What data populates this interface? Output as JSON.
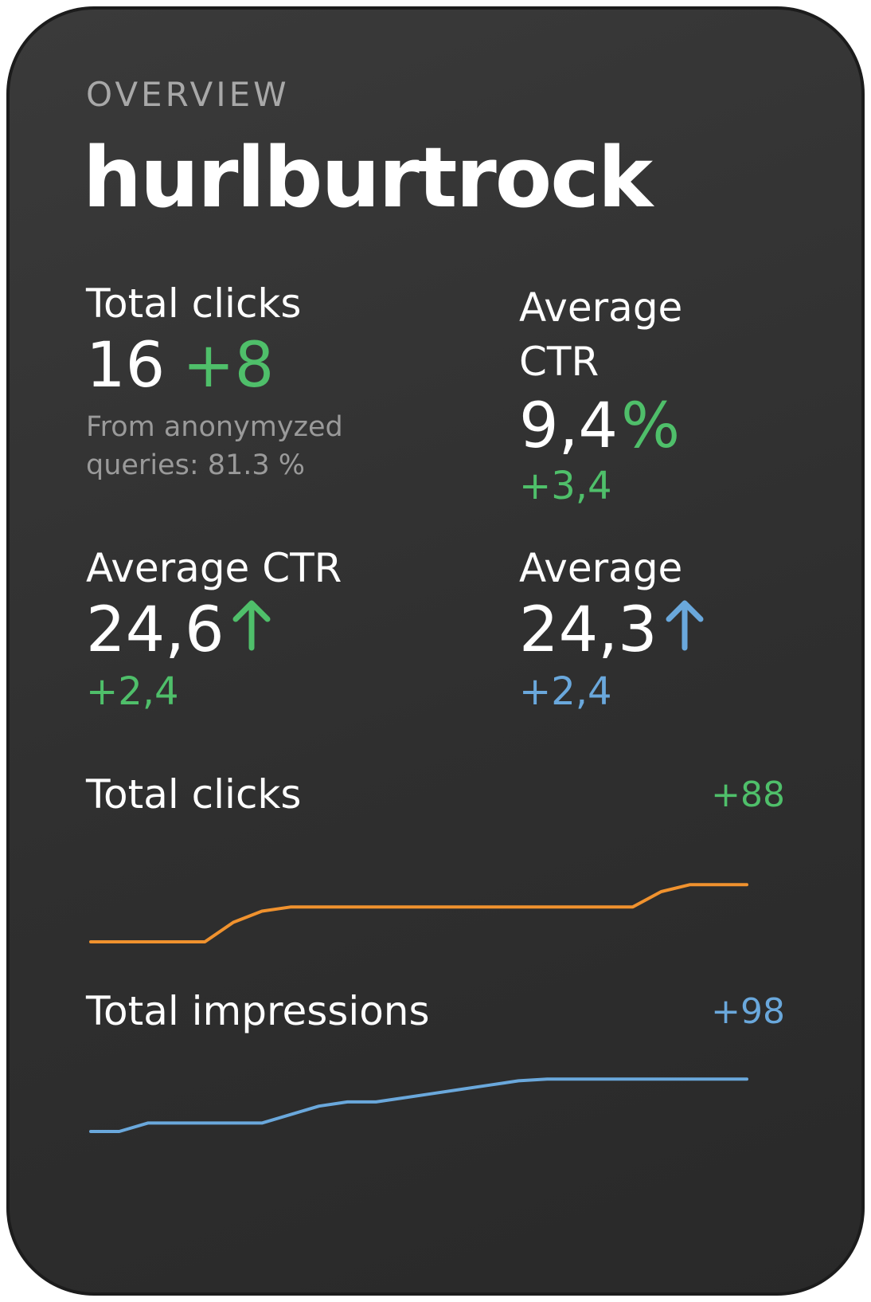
{
  "overview_label": "OVERVIEW",
  "site_name": "hurlburtrock",
  "stats": {
    "total_clicks": {
      "label": "Total clicks",
      "value": "16",
      "delta": "+8",
      "note_line1": "From anonymyzed",
      "note_line2": "queries: 81.3 %"
    },
    "avg_ctr_top": {
      "label_line1": "Average",
      "label_line2": "CTR",
      "value": "9,4",
      "unit": "%",
      "delta": "+3,4"
    },
    "avg_ctr_bottom": {
      "label": "Average CTR",
      "value": "24,6",
      "delta": "+2,4",
      "arrow": "up-arrow-icon"
    },
    "average": {
      "label": "Average",
      "value": "24,3",
      "delta": "+2,4",
      "arrow": "up-arrow-icon"
    }
  },
  "colors": {
    "positive": "#4fbf6a",
    "info": "#6aa8dc",
    "clicks_line": "#f0922e",
    "impressions_line": "#6aa8dc"
  },
  "chart_data": [
    {
      "type": "line",
      "title": "Total clicks",
      "delta": "+88",
      "x": [
        0,
        1,
        2,
        3,
        4,
        5,
        6,
        7,
        8,
        9,
        10,
        11,
        12,
        13,
        14,
        15,
        16,
        17,
        18,
        19,
        20,
        21,
        22,
        23
      ],
      "series": [
        {
          "values": [
            0,
            0,
            0,
            0,
            0,
            14,
            22,
            25,
            25,
            25,
            25,
            25,
            25,
            25,
            25,
            25,
            25,
            25,
            25,
            25,
            36,
            41,
            41,
            41
          ]
        }
      ],
      "ylim": [
        0,
        80
      ],
      "grid": false,
      "legend": "none"
    },
    {
      "type": "line",
      "title": "Total impressions",
      "delta": "+98",
      "x": [
        0,
        1,
        2,
        3,
        4,
        5,
        6,
        7,
        8,
        9,
        10,
        11,
        12,
        13,
        14,
        15,
        16,
        17,
        18,
        19,
        20,
        21,
        22,
        23
      ],
      "series": [
        {
          "values": [
            0,
            0,
            10,
            10,
            10,
            10,
            10,
            20,
            30,
            35,
            35,
            40,
            45,
            50,
            55,
            60,
            62,
            62,
            62,
            62,
            62,
            62,
            62,
            62
          ]
        }
      ],
      "ylim": [
        0,
        100
      ],
      "grid": false,
      "legend": "none"
    }
  ]
}
